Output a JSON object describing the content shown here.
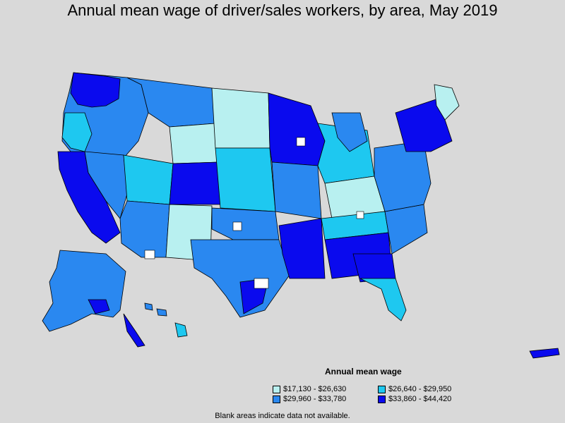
{
  "title": "Annual mean wage of driver/sales workers, by area, May 2019",
  "legend": {
    "title": "Annual mean wage",
    "items": [
      {
        "label": "$17,130 - $26,630",
        "color": "#b8f0f0"
      },
      {
        "label": "$26,640 - $29,950",
        "color": "#1ec8f0"
      },
      {
        "label": "$29,960 - $33,780",
        "color": "#2a88f0"
      },
      {
        "label": "$33,860 - $44,420",
        "color": "#0a0aee"
      }
    ]
  },
  "note": "Blank areas indicate data not available.",
  "colors": {
    "background": "#d9d9d9",
    "blank": "#ffffff",
    "border": "#000000"
  }
}
